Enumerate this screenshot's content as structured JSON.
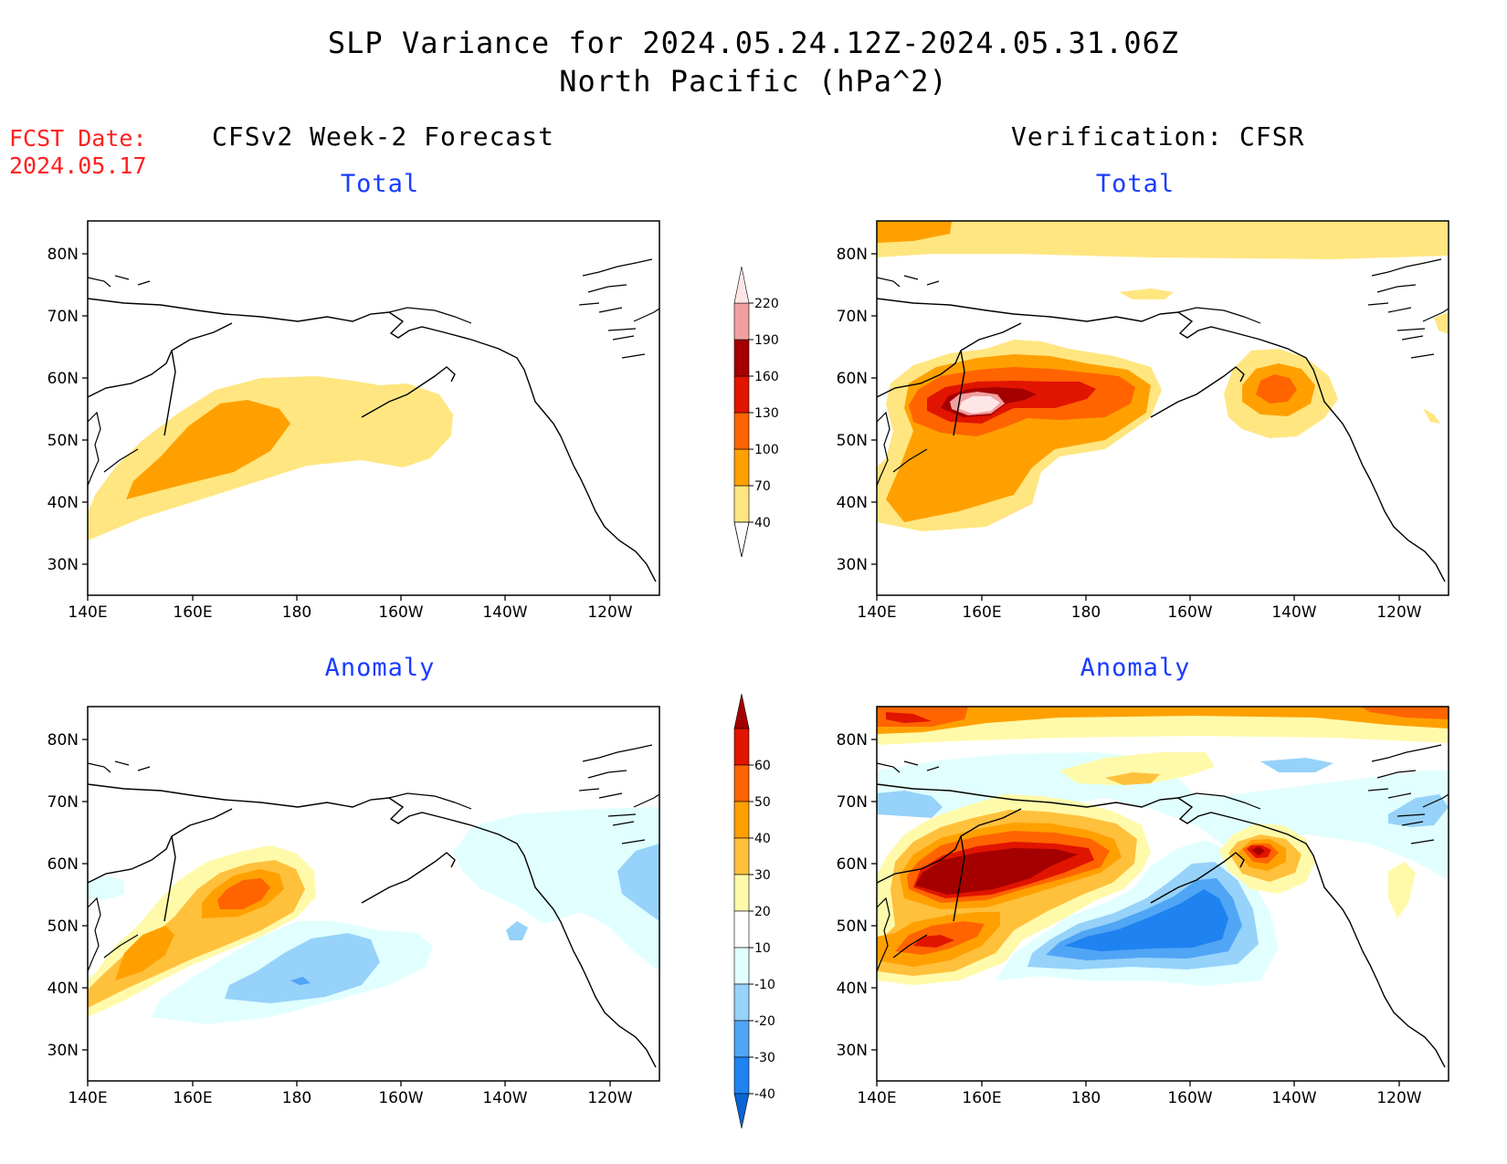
{
  "header": {
    "title_line1": "SLP Variance for 2024.05.24.12Z-2024.05.31.06Z",
    "title_line2": "North Pacific (hPa^2)",
    "fcst_label": "FCST Date:",
    "fcst_date": "2024.05.17",
    "left_heading": "CFSv2 Week-2 Forecast",
    "right_heading": "Verification: CFSR"
  },
  "panels": {
    "forecast_total": "Total",
    "verification_total": "Total",
    "forecast_anomaly": "Anomaly",
    "verification_anomaly": "Anomaly"
  },
  "axes": {
    "lat_labels": [
      "80N",
      "70N",
      "60N",
      "50N",
      "40N",
      "30N"
    ],
    "lon_labels": [
      "140E",
      "160E",
      "180",
      "160W",
      "140W",
      "120W"
    ]
  },
  "colorbars": {
    "total": {
      "levels": [
        "40",
        "70",
        "100",
        "130",
        "160",
        "190",
        "220"
      ],
      "colors": [
        "#ffe680",
        "#ffa000",
        "#ff6400",
        "#e11400",
        "#a50000",
        "#f0a0a0",
        "#ffe6e6"
      ]
    },
    "anomaly": {
      "levels": [
        "-40",
        "-30",
        "-20",
        "-10",
        "10",
        "20",
        "30",
        "40",
        "50",
        "60"
      ],
      "colors": [
        "#0a64d2",
        "#1e82f0",
        "#50a5f5",
        "#96d2fa",
        "#e1ffff",
        "#ffffff",
        "#fffaaa",
        "#ffc03c",
        "#ffa000",
        "#ff6400",
        "#e11400",
        "#a50000"
      ]
    }
  }
}
